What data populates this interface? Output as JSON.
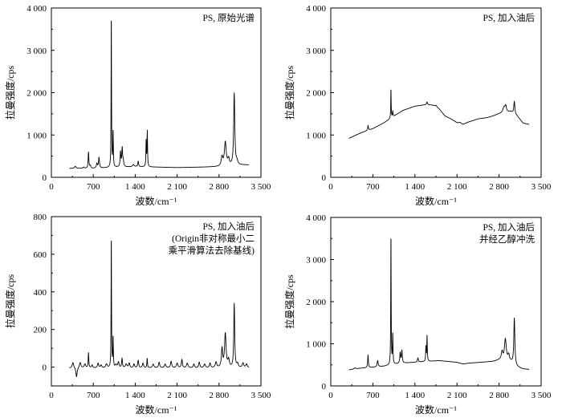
{
  "chart_data": [
    {
      "type": "line",
      "annotation": [
        "PS, 原始光谱"
      ],
      "xlabel": "波数/cm⁻¹",
      "ylabel": "拉曼强度/cps",
      "xlim": [
        0,
        3500
      ],
      "ylim": [
        0,
        4000
      ],
      "xticks": [
        {
          "v": 0,
          "label": "0"
        },
        {
          "v": 700,
          "label": "700"
        },
        {
          "v": 1400,
          "label": "1 400"
        },
        {
          "v": 2100,
          "label": "2 100"
        },
        {
          "v": 2800,
          "label": "2 800"
        },
        {
          "v": 3500,
          "label": "3 500"
        }
      ],
      "yticks": [
        {
          "v": 0,
          "label": "0"
        },
        {
          "v": 1000,
          "label": "1 000"
        },
        {
          "v": 2000,
          "label": "2 000"
        },
        {
          "v": 3000,
          "label": "3 000"
        },
        {
          "v": 4000,
          "label": "4 000"
        }
      ],
      "series": [
        {
          "baseline": [
            [
              300,
              210
            ],
            [
              700,
              210
            ],
            [
              1000,
              230
            ],
            [
              1400,
              250
            ],
            [
              1800,
              240
            ],
            [
              2100,
              230
            ],
            [
              2500,
              240
            ],
            [
              2800,
              250
            ],
            [
              3000,
              270
            ],
            [
              3200,
              290
            ],
            [
              3300,
              290
            ]
          ],
          "peaks": [
            [
              400,
              50,
              15
            ],
            [
              540,
              30,
              12
            ],
            [
              620,
              380,
              7
            ],
            [
              650,
              60,
              10
            ],
            [
              760,
              110,
              10
            ],
            [
              795,
              250,
              9
            ],
            [
              1001,
              3650,
              4
            ],
            [
              1031,
              840,
              5
            ],
            [
              1155,
              350,
              8
            ],
            [
              1183,
              430,
              8
            ],
            [
              1200,
              120,
              10
            ],
            [
              1370,
              50,
              15
            ],
            [
              1450,
              130,
              8
            ],
            [
              1583,
              620,
              5
            ],
            [
              1602,
              830,
              5
            ],
            [
              2850,
              210,
              15
            ],
            [
              2905,
              560,
              18
            ],
            [
              2960,
              150,
              15
            ],
            [
              3054,
              1700,
              11
            ],
            [
              3100,
              80,
              15
            ]
          ]
        }
      ]
    },
    {
      "type": "line",
      "annotation": [
        "PS, 加入油后"
      ],
      "xlabel": "波数/cm⁻¹",
      "ylabel": "拉曼强度/cps",
      "xlim": [
        0,
        3500
      ],
      "ylim": [
        0,
        4000
      ],
      "xticks": [
        {
          "v": 0,
          "label": "0"
        },
        {
          "v": 700,
          "label": "700"
        },
        {
          "v": 1400,
          "label": "1 400"
        },
        {
          "v": 2100,
          "label": "2 100"
        },
        {
          "v": 2800,
          "label": "2 800"
        },
        {
          "v": 3500,
          "label": "3 500"
        }
      ],
      "yticks": [
        {
          "v": 0,
          "label": "0"
        },
        {
          "v": 1000,
          "label": "1 000"
        },
        {
          "v": 2000,
          "label": "2 000"
        },
        {
          "v": 3000,
          "label": "3 000"
        },
        {
          "v": 4000,
          "label": "4 000"
        }
      ],
      "series": [
        {
          "baseline": [
            [
              300,
              920
            ],
            [
              500,
              1050
            ],
            [
              700,
              1150
            ],
            [
              900,
              1300
            ],
            [
              1000,
              1400
            ],
            [
              1200,
              1580
            ],
            [
              1400,
              1680
            ],
            [
              1600,
              1720
            ],
            [
              1700,
              1700
            ],
            [
              1800,
              1620
            ],
            [
              1900,
              1450
            ],
            [
              2000,
              1380
            ],
            [
              2100,
              1290
            ],
            [
              2200,
              1250
            ],
            [
              2300,
              1310
            ],
            [
              2450,
              1380
            ],
            [
              2600,
              1410
            ],
            [
              2700,
              1450
            ],
            [
              2800,
              1500
            ],
            [
              2900,
              1530
            ],
            [
              3000,
              1550
            ],
            [
              3100,
              1450
            ],
            [
              3200,
              1280
            ],
            [
              3300,
              1250
            ]
          ],
          "peaks": [
            [
              620,
              120,
              7
            ],
            [
              1001,
              700,
              4
            ],
            [
              1031,
              140,
              5
            ],
            [
              1600,
              60,
              8
            ],
            [
              1750,
              40,
              20
            ],
            [
              2150,
              30,
              20
            ],
            [
              2880,
              120,
              20
            ],
            [
              2910,
              150,
              15
            ],
            [
              3054,
              300,
              10
            ]
          ]
        }
      ]
    },
    {
      "type": "line",
      "annotation": [
        "PS, 加入油后",
        "(Origin非对称最小二",
        "乘平滑算法去除基线)"
      ],
      "xlabel": "波数/cm⁻¹",
      "ylabel": "拉曼强度/cps",
      "xlim": [
        0,
        3500
      ],
      "ylim": [
        -100,
        800
      ],
      "xticks": [
        {
          "v": 0,
          "label": "0"
        },
        {
          "v": 700,
          "label": "700"
        },
        {
          "v": 1400,
          "label": "1 400"
        },
        {
          "v": 2100,
          "label": "2 100"
        },
        {
          "v": 2800,
          "label": "2 800"
        },
        {
          "v": 3500,
          "label": "3 500"
        }
      ],
      "yticks": [
        {
          "v": 0,
          "label": "0"
        },
        {
          "v": 200,
          "label": "200"
        },
        {
          "v": 400,
          "label": "400"
        },
        {
          "v": 600,
          "label": "600"
        },
        {
          "v": 800,
          "label": "800"
        }
      ],
      "series": [
        {
          "baseline": [
            [
              300,
              -5
            ],
            [
              3300,
              -5
            ]
          ],
          "peaks": [
            [
              360,
              30,
              15
            ],
            [
              420,
              -50,
              12
            ],
            [
              480,
              30,
              15
            ],
            [
              560,
              20,
              15
            ],
            [
              620,
              80,
              6
            ],
            [
              680,
              15,
              12
            ],
            [
              780,
              25,
              12
            ],
            [
              830,
              15,
              12
            ],
            [
              920,
              20,
              15
            ],
            [
              1001,
              710,
              4
            ],
            [
              1031,
              160,
              5
            ],
            [
              1080,
              15,
              15
            ],
            [
              1120,
              30,
              12
            ],
            [
              1180,
              50,
              8
            ],
            [
              1250,
              20,
              15
            ],
            [
              1300,
              25,
              12
            ],
            [
              1380,
              20,
              12
            ],
            [
              1450,
              40,
              10
            ],
            [
              1530,
              25,
              12
            ],
            [
              1600,
              50,
              6
            ],
            [
              1700,
              20,
              15
            ],
            [
              1800,
              30,
              12
            ],
            [
              1900,
              20,
              15
            ],
            [
              2000,
              35,
              12
            ],
            [
              2100,
              25,
              15
            ],
            [
              2180,
              45,
              10
            ],
            [
              2270,
              25,
              15
            ],
            [
              2380,
              20,
              12
            ],
            [
              2470,
              30,
              12
            ],
            [
              2560,
              20,
              15
            ],
            [
              2650,
              25,
              12
            ],
            [
              2750,
              30,
              15
            ],
            [
              2850,
              100,
              12
            ],
            [
              2905,
              180,
              15
            ],
            [
              2960,
              40,
              15
            ],
            [
              3054,
              340,
              9
            ],
            [
              3110,
              20,
              15
            ],
            [
              3200,
              25,
              15
            ],
            [
              3260,
              20,
              15
            ]
          ]
        }
      ]
    },
    {
      "type": "line",
      "annotation": [
        "PS, 加入油后",
        "并经乙醇冲洗"
      ],
      "xlabel": "波数/cm⁻¹",
      "ylabel": "拉曼强度/cps",
      "xlim": [
        0,
        3500
      ],
      "ylim": [
        0,
        4000
      ],
      "xticks": [
        {
          "v": 0,
          "label": "0"
        },
        {
          "v": 700,
          "label": "700"
        },
        {
          "v": 1400,
          "label": "1 400"
        },
        {
          "v": 2100,
          "label": "2 100"
        },
        {
          "v": 2800,
          "label": "2 800"
        },
        {
          "v": 3500,
          "label": "3 500"
        }
      ],
      "yticks": [
        {
          "v": 0,
          "label": "0"
        },
        {
          "v": 1000,
          "label": "1 000"
        },
        {
          "v": 2000,
          "label": "2 000"
        },
        {
          "v": 3000,
          "label": "3 000"
        },
        {
          "v": 4000,
          "label": "4 000"
        }
      ],
      "series": [
        {
          "baseline": [
            [
              300,
              380
            ],
            [
              500,
              420
            ],
            [
              700,
              440
            ],
            [
              900,
              470
            ],
            [
              1000,
              500
            ],
            [
              1200,
              540
            ],
            [
              1400,
              560
            ],
            [
              1600,
              580
            ],
            [
              1800,
              600
            ],
            [
              1950,
              580
            ],
            [
              2100,
              560
            ],
            [
              2200,
              520
            ],
            [
              2300,
              540
            ],
            [
              2500,
              560
            ],
            [
              2700,
              580
            ],
            [
              2800,
              610
            ],
            [
              3000,
              560
            ],
            [
              3100,
              450
            ],
            [
              3200,
              400
            ],
            [
              3300,
              390
            ]
          ],
          "peaks": [
            [
              400,
              30,
              15
            ],
            [
              620,
              300,
              7
            ],
            [
              780,
              150,
              10
            ],
            [
              1001,
              3150,
              4
            ],
            [
              1031,
              720,
              5
            ],
            [
              1155,
              250,
              8
            ],
            [
              1183,
              300,
              8
            ],
            [
              1450,
              100,
              8
            ],
            [
              1583,
              350,
              5
            ],
            [
              1602,
              600,
              5
            ],
            [
              2850,
              200,
              15
            ],
            [
              2905,
              520,
              18
            ],
            [
              2960,
              150,
              15
            ],
            [
              3054,
              1100,
              10
            ]
          ]
        }
      ]
    }
  ]
}
